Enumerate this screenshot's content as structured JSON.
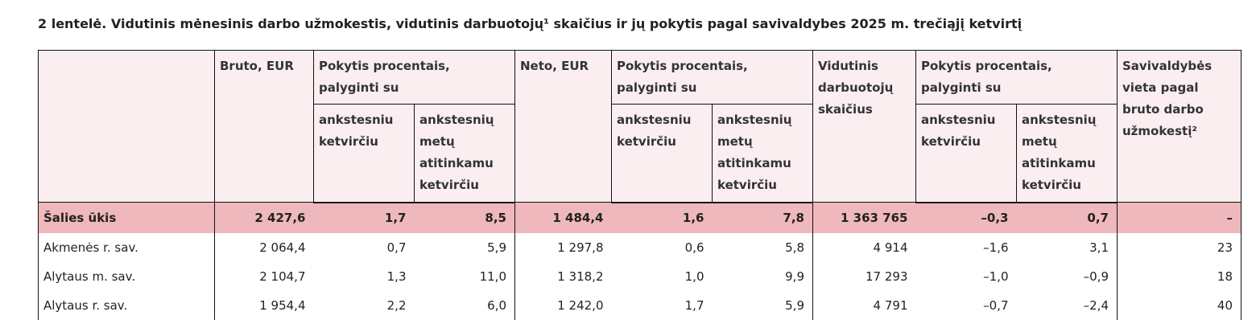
{
  "title": "2 lentelė. Vidutinis mėnesinis darbo užmokestis, vidutinis darbuotojų¹ skaičius ir jų pokytis pagal savivaldybes 2025 m. trečiąjį ketvirtį",
  "table": {
    "header": [
      "Bruto, EUR",
      "Pokytis procentais, palyginti su",
      "Neto, EUR",
      "Pokytis procentais, palyginti su",
      "Vidutinis darbuotojų skaičius",
      "Pokytis procentais, palyginti su",
      "Savivaldybės vieta pagal bruto darbo užmokestį²"
    ],
    "subheader": [
      "ankstesniu ketvirčiu",
      "ankstesnių metų atitinkamu ketvirčiu",
      "ankstesniu ketvirčiu",
      "ankstesnių metų atitinkamu ketvirčiu",
      "ankstesniu ketvirčiu",
      "ankstesnių metų atitinkamu ketvirčiu"
    ],
    "rows": [
      [
        "Šalies ūkis",
        "2 427,6",
        "1,7",
        "8,5",
        "1 484,4",
        "1,6",
        "7,8",
        "1 363 765",
        "–0,3",
        "0,7",
        "–"
      ],
      [
        "Akmenės r. sav.",
        "2 064,4",
        "0,7",
        "5,9",
        "1 297,8",
        "0,6",
        "5,8",
        "4 914",
        "–1,6",
        "3,1",
        "23"
      ],
      [
        "Alytaus m. sav.",
        "2 104,7",
        "1,3",
        "11,0",
        "1 318,2",
        "1,0",
        "9,9",
        "17 293",
        "–1,0",
        "–0,9",
        "18"
      ],
      [
        "Alytaus r. sav.",
        "1 954,4",
        "2,2",
        "6,0",
        "1 242,0",
        "1,7",
        "5,9",
        "4 791",
        "–0,7",
        "–2,4",
        "40"
      ]
    ]
  }
}
